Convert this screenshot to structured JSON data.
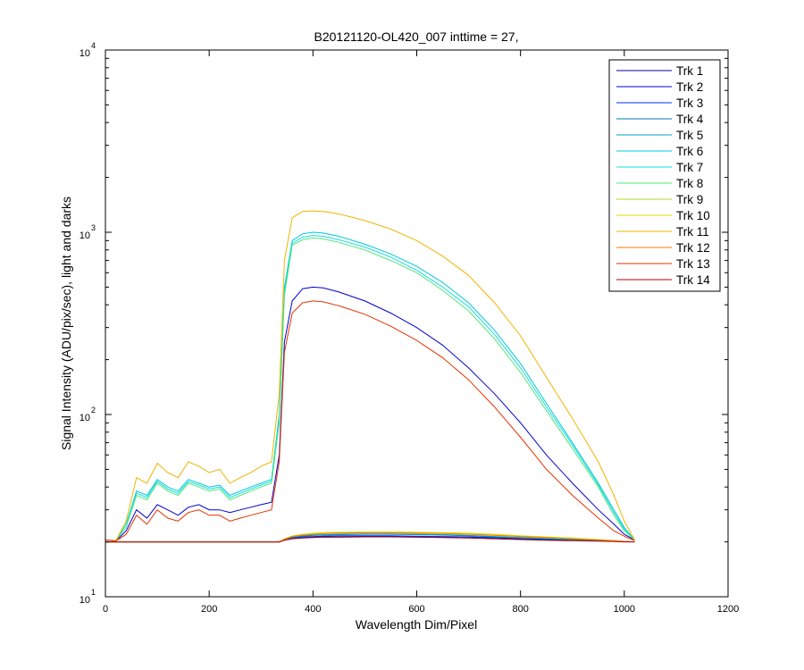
{
  "chart_data": {
    "type": "line",
    "title": "B20121120-OL420_007 inttime = 27,",
    "xlabel": "Wavelength Dim/Pixel",
    "ylabel": "Signal Intensity (ADU/pix/sec), light and darks",
    "xlim": [
      0,
      1200
    ],
    "ylim": [
      10,
      10000
    ],
    "yscale": "log",
    "grid": false,
    "legend_position": "top-right",
    "x_ticks": [
      "0",
      "200",
      "400",
      "600",
      "800",
      "1000",
      "1200"
    ],
    "y_ticks": [
      {
        "base": "10",
        "exp": "1"
      },
      {
        "base": "10",
        "exp": "2"
      },
      {
        "base": "10",
        "exp": "3"
      },
      {
        "base": "10",
        "exp": "4"
      }
    ],
    "x": [
      0,
      20,
      40,
      60,
      80,
      100,
      120,
      140,
      160,
      180,
      200,
      220,
      240,
      260,
      280,
      300,
      320,
      335,
      345,
      360,
      380,
      400,
      420,
      450,
      500,
      550,
      600,
      650,
      700,
      750,
      800,
      850,
      900,
      950,
      980,
      1000,
      1020
    ],
    "series": [
      {
        "name": "Trk 1",
        "color": "#000096",
        "values": [
          20,
          20,
          20,
          20,
          20,
          20,
          20,
          20,
          20,
          20,
          20,
          20,
          20,
          20,
          20,
          20,
          20,
          20,
          20.5,
          21,
          21.2,
          21.3,
          21.4,
          21.5,
          21.5,
          21.5,
          21.4,
          21.3,
          21.2,
          21,
          20.8,
          20.6,
          20.4,
          20.3,
          20.2,
          20.1,
          20
        ]
      },
      {
        "name": "Trk 2",
        "color": "#0000d2",
        "values": [
          20.5,
          20.2,
          23,
          30,
          27,
          32,
          30,
          28,
          31,
          32,
          30,
          30,
          29,
          30,
          31,
          32,
          33,
          60,
          250,
          420,
          490,
          500,
          495,
          470,
          420,
          360,
          300,
          240,
          180,
          130,
          90,
          60,
          42,
          30,
          25,
          22,
          20.5
        ]
      },
      {
        "name": "Trk 3",
        "color": "#0032ff",
        "values": [
          20,
          20,
          20,
          20,
          20,
          20,
          20,
          20,
          20,
          20,
          20,
          20,
          20,
          20,
          20,
          20,
          20,
          20,
          20.5,
          21,
          21.3,
          21.4,
          21.5,
          21.6,
          21.6,
          21.6,
          21.5,
          21.4,
          21.3,
          21.1,
          20.9,
          20.7,
          20.5,
          20.3,
          20.2,
          20.1,
          20
        ]
      },
      {
        "name": "Trk 4",
        "color": "#0078b4",
        "values": [
          20,
          20,
          20,
          20,
          20,
          20,
          20,
          20,
          20,
          20,
          20,
          20,
          20,
          20,
          20,
          20,
          20,
          20,
          20.6,
          21.2,
          21.5,
          21.7,
          21.8,
          21.9,
          22,
          22,
          21.9,
          21.8,
          21.6,
          21.3,
          21,
          20.8,
          20.6,
          20.4,
          20.2,
          20.1,
          20
        ]
      },
      {
        "name": "Trk 5",
        "color": "#00a0c8",
        "values": [
          20,
          20,
          20,
          20,
          20,
          20,
          20,
          20,
          20,
          20,
          20,
          20,
          20,
          20,
          20,
          20,
          20,
          20,
          20.6,
          21.3,
          21.6,
          21.8,
          21.9,
          22,
          22.1,
          22.1,
          22,
          21.9,
          21.7,
          21.4,
          21.1,
          20.9,
          20.6,
          20.4,
          20.2,
          20.1,
          20
        ]
      },
      {
        "name": "Trk 6",
        "color": "#00c8dc",
        "values": [
          20.5,
          20.3,
          25,
          38,
          36,
          44,
          40,
          38,
          44,
          42,
          40,
          41,
          36,
          38,
          40,
          42,
          44,
          100,
          500,
          900,
          980,
          1000,
          990,
          950,
          860,
          760,
          650,
          530,
          410,
          290,
          190,
          115,
          70,
          42,
          30,
          24,
          20.5
        ]
      },
      {
        "name": "Trk 7",
        "color": "#14dcdc",
        "values": [
          20.5,
          20.3,
          25,
          37,
          35,
          43,
          39,
          37,
          43,
          41,
          39,
          40,
          35,
          37,
          39,
          41,
          43,
          95,
          470,
          870,
          940,
          960,
          950,
          910,
          830,
          730,
          620,
          500,
          390,
          275,
          180,
          110,
          68,
          41,
          29,
          23.5,
          20.5
        ]
      },
      {
        "name": "Trk 8",
        "color": "#50e678",
        "values": [
          20.5,
          20.3,
          24,
          36,
          34,
          42,
          38,
          36,
          42,
          40,
          38,
          39,
          34,
          36,
          38,
          40,
          42,
          90,
          450,
          850,
          910,
          930,
          920,
          880,
          800,
          700,
          600,
          480,
          370,
          260,
          170,
          105,
          65,
          40,
          28,
          23,
          20.5
        ]
      },
      {
        "name": "Trk 9",
        "color": "#aadc32",
        "values": [
          20,
          20,
          20,
          20,
          20,
          20,
          20,
          20,
          20,
          20,
          20,
          20,
          20,
          20,
          20,
          20,
          20,
          20,
          20.7,
          21.5,
          21.9,
          22.2,
          22.3,
          22.4,
          22.5,
          22.5,
          22.4,
          22.3,
          22.1,
          21.8,
          21.5,
          21.2,
          20.9,
          20.6,
          20.3,
          20.1,
          20
        ]
      },
      {
        "name": "Trk 10",
        "color": "#dcdc00",
        "values": [
          20,
          20,
          20,
          20,
          20,
          20,
          20,
          20,
          20,
          20,
          20,
          20,
          20,
          20,
          20,
          20,
          20,
          20,
          20.8,
          21.6,
          22,
          22.3,
          22.5,
          22.6,
          22.7,
          22.7,
          22.6,
          22.5,
          22.3,
          22,
          21.6,
          21.3,
          21,
          20.6,
          20.3,
          20.1,
          20
        ]
      },
      {
        "name": "Trk 11",
        "color": "#f0b400",
        "values": [
          20.5,
          20.3,
          26,
          45,
          42,
          54,
          48,
          45,
          55,
          52,
          48,
          50,
          42,
          45,
          48,
          52,
          55,
          130,
          700,
          1200,
          1300,
          1310,
          1300,
          1260,
          1160,
          1040,
          900,
          740,
          580,
          410,
          270,
          160,
          95,
          55,
          36,
          26,
          20.5
        ]
      },
      {
        "name": "Trk 12",
        "color": "#ff7800",
        "values": [
          20,
          20,
          20,
          20,
          20,
          20,
          20,
          20,
          20,
          20,
          20,
          20,
          20,
          20,
          20,
          20,
          20,
          20,
          20.7,
          21.4,
          21.8,
          22,
          22.2,
          22.3,
          22.4,
          22.4,
          22.3,
          22.2,
          22,
          21.7,
          21.4,
          21.1,
          20.8,
          20.5,
          20.3,
          20.1,
          20
        ]
      },
      {
        "name": "Trk 13",
        "color": "#e63200",
        "values": [
          20.5,
          20.2,
          22,
          28,
          25,
          30,
          27,
          26,
          29,
          30,
          28,
          28,
          26,
          27,
          28,
          29,
          30,
          55,
          220,
          360,
          410,
          420,
          415,
          395,
          355,
          305,
          255,
          205,
          155,
          110,
          75,
          50,
          36,
          27,
          23,
          21.5,
          20.3
        ]
      },
      {
        "name": "Trk 14",
        "color": "#b40000",
        "values": [
          20,
          20,
          20,
          20,
          20,
          20,
          20,
          20,
          20,
          20,
          20,
          20,
          20,
          20,
          20,
          20,
          20,
          20,
          20.4,
          20.8,
          21,
          21.1,
          21.2,
          21.2,
          21.3,
          21.3,
          21.2,
          21.1,
          21,
          20.8,
          20.6,
          20.4,
          20.3,
          20.2,
          20.1,
          20,
          20
        ]
      }
    ]
  }
}
